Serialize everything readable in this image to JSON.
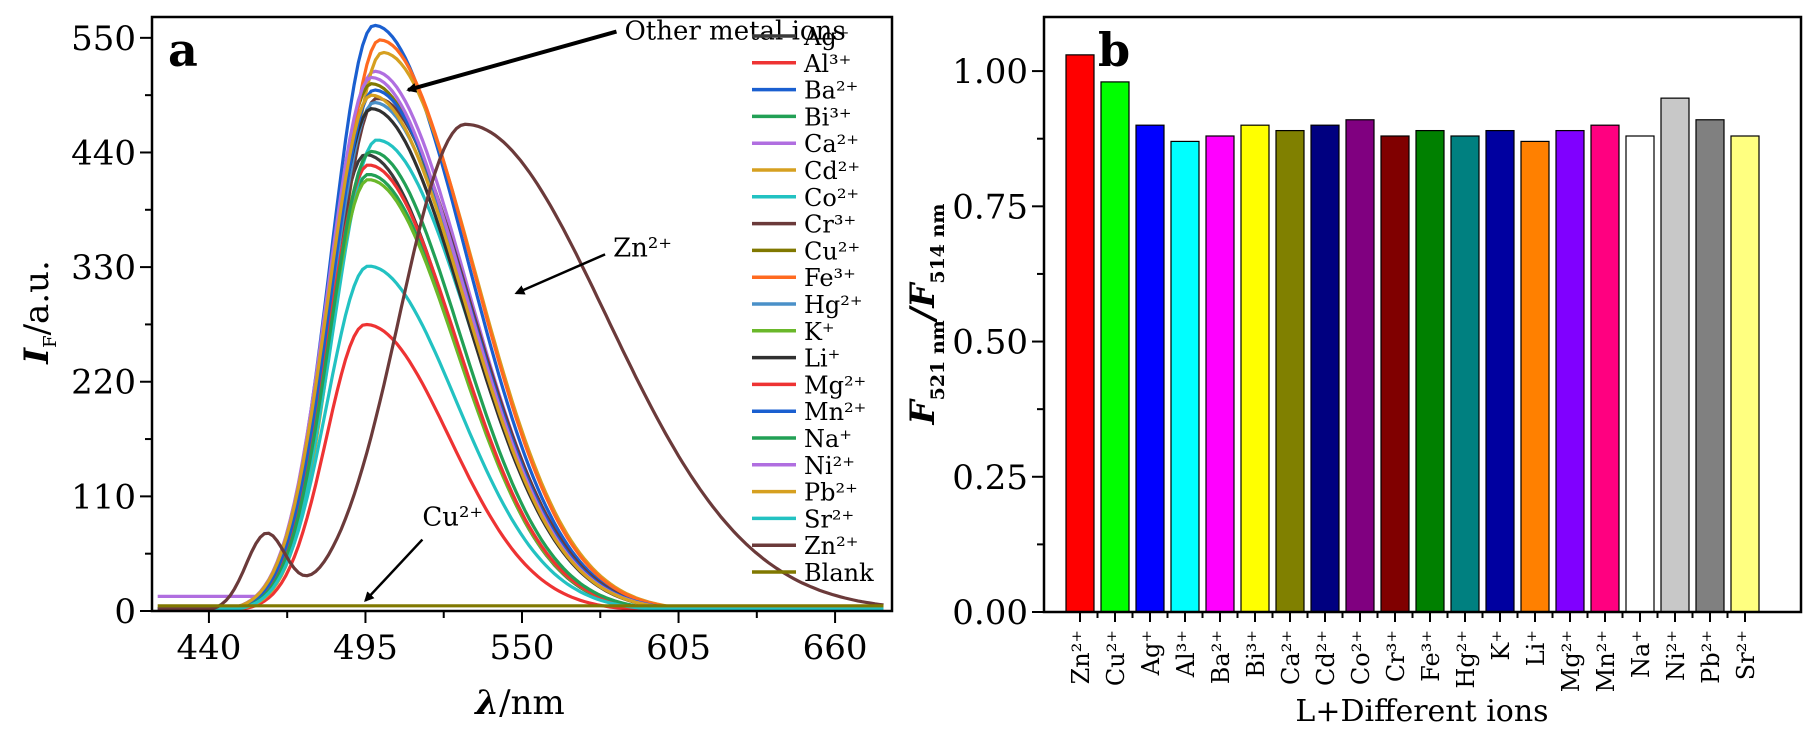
{
  "chart_data": [
    {
      "type": "line",
      "panel_label": "a",
      "xlabel_symbol": "λ",
      "xlabel_unit": "/nm",
      "ylabel_symbol": "I",
      "ylabel_sub": "F",
      "ylabel_unit": "/a.u.",
      "xlim": [
        420,
        680
      ],
      "ylim": [
        0,
        570
      ],
      "xticks": [
        440,
        495,
        550,
        605,
        660
      ],
      "yticks": [
        0,
        110,
        220,
        330,
        440,
        550
      ],
      "legend_position": "right",
      "annotations": [
        {
          "text": "Other metal ions",
          "x": 586,
          "y": 556,
          "arrow_to": [
            510,
            500
          ]
        },
        {
          "text": "Zn²⁺",
          "x": 582,
          "y": 348,
          "arrow_to": [
            548,
            305
          ]
        },
        {
          "text": "Cu²⁺",
          "x": 515,
          "y": 82,
          "arrow_to": [
            495,
            10
          ]
        }
      ],
      "series": [
        {
          "name": "Ag⁺",
          "color": "#3a3a3a",
          "peak_x": 495,
          "peak_y": 438,
          "width": 20
        },
        {
          "name": "Al³⁺",
          "color": "#ee3333",
          "peak_x": 495,
          "peak_y": 275,
          "width": 19
        },
        {
          "name": "Ba²⁺",
          "color": "#1a5fd0",
          "peak_x": 498,
          "peak_y": 562,
          "width": 21
        },
        {
          "name": "Bi³⁺",
          "color": "#22a055",
          "peak_x": 496,
          "peak_y": 419,
          "width": 20
        },
        {
          "name": "Ca²⁺",
          "color": "#b06ee0",
          "peak_x": 498,
          "peak_y": 518,
          "width": 21
        },
        {
          "name": "Cd²⁺",
          "color": "#d6a020",
          "peak_x": 501,
          "peak_y": 536,
          "width": 21
        },
        {
          "name": "Co²⁺",
          "color": "#22c2c2",
          "peak_x": 499,
          "peak_y": 452,
          "width": 21
        },
        {
          "name": "Cr³⁺",
          "color": "#6b3a3a",
          "peak_x": 499,
          "peak_y": 492,
          "width": 21
        },
        {
          "name": "Cu²⁺",
          "color": "#807800",
          "peak_x": 497,
          "peak_y": 506,
          "width": 21
        },
        {
          "name": "Fe³⁺",
          "color": "#ff6a20",
          "peak_x": 500,
          "peak_y": 548,
          "width": 21
        },
        {
          "name": "Hg²⁺",
          "color": "#4a90c8",
          "peak_x": 498,
          "peak_y": 488,
          "width": 21
        },
        {
          "name": "K⁺",
          "color": "#6ab82a",
          "peak_x": 496,
          "peak_y": 414,
          "width": 20
        },
        {
          "name": "Li⁺",
          "color": "#303030",
          "peak_x": 497,
          "peak_y": 482,
          "width": 21
        },
        {
          "name": "Mg²⁺",
          "color": "#ee3333",
          "peak_x": 496,
          "peak_y": 428,
          "width": 20
        },
        {
          "name": "Mn²⁺",
          "color": "#1a5fd0",
          "peak_x": 498,
          "peak_y": 500,
          "width": 21
        },
        {
          "name": "Na⁺",
          "color": "#22a055",
          "peak_x": 497,
          "peak_y": 441,
          "width": 20
        },
        {
          "name": "Ni²⁺",
          "color": "#b06ee0",
          "peak_x": 497,
          "peak_y": 512,
          "width": 21
        },
        {
          "name": "Pb²⁺",
          "color": "#d6a020",
          "peak_x": 497,
          "peak_y": 495,
          "width": 21
        },
        {
          "name": "Sr²⁺",
          "color": "#22c2c2",
          "peak_x": 496,
          "peak_y": 331,
          "width": 20
        },
        {
          "name": "Zn²⁺",
          "color": "#6b3a3a",
          "peak_x": 530,
          "peak_y": 467,
          "width": 32
        },
        {
          "name": "Blank",
          "color": "#807800",
          "peak_x": 495,
          "peak_y": 5,
          "width": 30
        }
      ]
    },
    {
      "type": "bar",
      "panel_label": "b",
      "xlabel": "L+Different ions",
      "ylabel_main": "F",
      "ylabel_sub1": "521 nm",
      "ylabel_sep": "/F",
      "ylabel_sub2": "514 nm",
      "ylim": [
        0,
        1.1
      ],
      "yticks": [
        "0.00",
        "0.25",
        "0.50",
        "0.75",
        "1.00"
      ],
      "categories": [
        "Zn²⁺",
        "Cu²⁺",
        "Ag⁺",
        "Al³⁺",
        "Ba²⁺",
        "Bi³⁺",
        "Ca²⁺",
        "Cd²⁺",
        "Co²⁺",
        "Cr³⁺",
        "Fe³⁺",
        "Hg²⁺",
        "K⁺",
        "Li⁺",
        "Mg²⁺",
        "Mn²⁺",
        "Na⁺",
        "Ni²⁺",
        "Pb²⁺",
        "Sr²⁺"
      ],
      "values": [
        1.03,
        0.98,
        0.9,
        0.87,
        0.88,
        0.9,
        0.89,
        0.9,
        0.91,
        0.88,
        0.89,
        0.88,
        0.89,
        0.87,
        0.89,
        0.9,
        0.88,
        0.95,
        0.91,
        0.88
      ],
      "colors": [
        "#ff0000",
        "#00ff00",
        "#0000ff",
        "#00ffff",
        "#ff00ff",
        "#ffff00",
        "#808000",
        "#000080",
        "#800080",
        "#800000",
        "#008000",
        "#008080",
        "#0000a0",
        "#ff8000",
        "#8000ff",
        "#ff0080",
        "#ffffff",
        "#c8c8c8",
        "#808080",
        "#ffff80"
      ]
    }
  ]
}
